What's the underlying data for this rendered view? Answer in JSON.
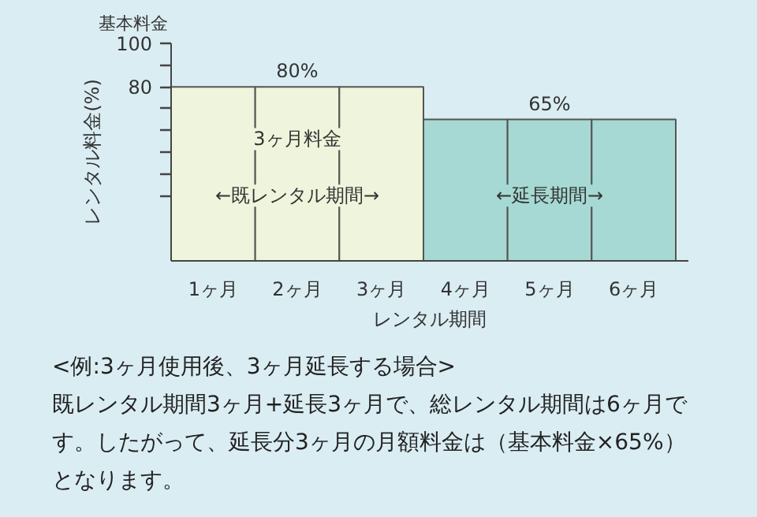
{
  "chart_data": {
    "type": "bar",
    "categories": [
      "1ヶ月",
      "2ヶ月",
      "3ヶ月",
      "4ヶ月",
      "5ヶ月",
      "6ヶ月"
    ],
    "values": [
      80,
      80,
      80,
      65,
      65,
      65
    ],
    "colors": [
      "#eef5dc",
      "#eef5dc",
      "#eef5dc",
      "#a6d9d3",
      "#a6d9d3",
      "#a6d9d3"
    ],
    "value_labels": [
      null,
      "80%",
      null,
      null,
      "65%",
      null
    ],
    "xlabel": "レンタル期間",
    "ylabel": "レンタル料金(%)",
    "ylim": [
      0,
      100
    ],
    "yticks": [
      {
        "value": 30,
        "label": null
      },
      {
        "value": 40,
        "label": null
      },
      {
        "value": 50,
        "label": null
      },
      {
        "value": 60,
        "label": null
      },
      {
        "value": 70,
        "label": null
      },
      80,
      {
        "value": 90,
        "label": null
      },
      100
    ],
    "grid": false,
    "annotations": [
      "基本料金",
      "3ヶ月料金",
      "←既レンタル期間→",
      "←延長期間→",
      "<例:3ヶ月使用後、3ヶ月延長する場合>",
      "既レンタル期間3ヶ月+延長3ヶ月で、総レンタル期間は6ヶ月です。したがって、延長分3ヶ月の月額料金は（基本料金×65%）となります。"
    ]
  }
}
